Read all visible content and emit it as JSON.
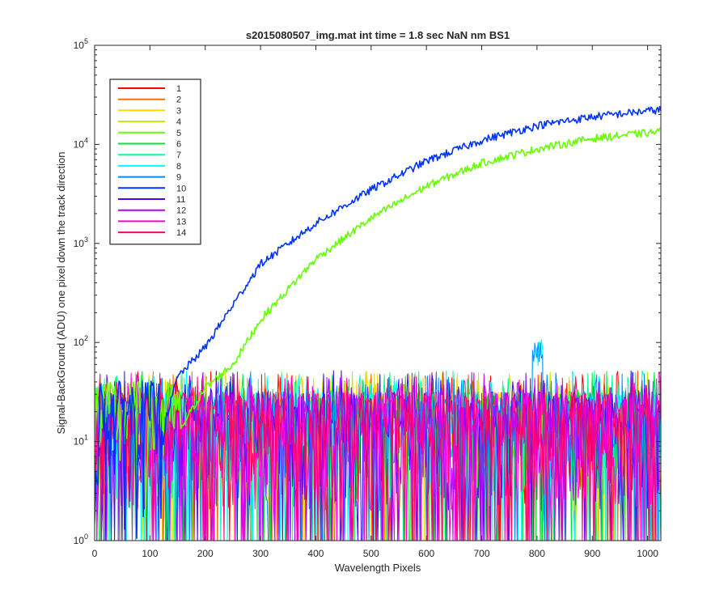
{
  "chart_data": {
    "type": "line",
    "title": "s2015080507_img.mat int time = 1.8 sec  NaN nm BS1",
    "xlabel": "Wavelength Pixels",
    "ylabel": "Signal-BackGround (ADU) one pixel down the track direction",
    "xlim": [
      0,
      1024
    ],
    "ylim": [
      1,
      100000
    ],
    "yscale": "log",
    "grid": false,
    "legend_position": "top-left",
    "x_ticks": [
      "0",
      "100",
      "200",
      "300",
      "400",
      "500",
      "600",
      "700",
      "800",
      "900",
      "1000"
    ],
    "y_ticks": [
      {
        "base": "10",
        "exp": "0"
      },
      {
        "base": "10",
        "exp": "1"
      },
      {
        "base": "10",
        "exp": "2"
      },
      {
        "base": "10",
        "exp": "3"
      },
      {
        "base": "10",
        "exp": "4"
      },
      {
        "base": "10",
        "exp": "5"
      }
    ],
    "series": [
      {
        "name": "1",
        "color": "#ff0000",
        "kind": "noise"
      },
      {
        "name": "2",
        "color": "#ff6e00",
        "kind": "noise"
      },
      {
        "name": "3",
        "color": "#ffd500",
        "kind": "noise"
      },
      {
        "name": "4",
        "color": "#c8e600",
        "kind": "noise"
      },
      {
        "name": "5",
        "color": "#66ff00",
        "kind": "signal",
        "x": [
          0,
          100,
          160,
          200,
          250,
          300,
          400,
          500,
          600,
          700,
          800,
          900,
          1024
        ],
        "values": [
          1,
          1,
          15,
          35,
          60,
          170,
          700,
          1800,
          3800,
          6500,
          9000,
          11500,
          13500
        ]
      },
      {
        "name": "6",
        "color": "#00e63c",
        "kind": "noise"
      },
      {
        "name": "7",
        "color": "#00ffa0",
        "kind": "noise"
      },
      {
        "name": "8",
        "color": "#00ffff",
        "kind": "noise"
      },
      {
        "name": "9",
        "color": "#008cff",
        "kind": "noise"
      },
      {
        "name": "10",
        "color": "#0033ff",
        "kind": "signal",
        "x": [
          0,
          100,
          130,
          150,
          200,
          250,
          300,
          400,
          500,
          600,
          700,
          800,
          900,
          1024
        ],
        "values": [
          1,
          1,
          18,
          45,
          90,
          240,
          620,
          1600,
          3500,
          6800,
          11000,
          15500,
          19000,
          22500
        ]
      },
      {
        "name": "11",
        "color": "#5000ff",
        "kind": "noise"
      },
      {
        "name": "12",
        "color": "#b400ff",
        "kind": "noise"
      },
      {
        "name": "13",
        "color": "#ff00d2",
        "kind": "noise"
      },
      {
        "name": "14",
        "color": "#ff0064",
        "kind": "noise"
      }
    ]
  }
}
